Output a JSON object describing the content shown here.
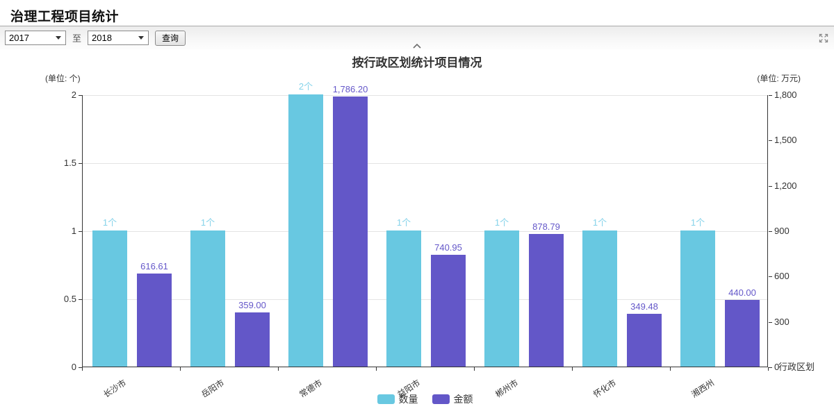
{
  "page": {
    "title": "治理工程项目统计"
  },
  "toolbar": {
    "year_from": "2017",
    "to_label": "至",
    "year_to": "2018",
    "query_button": "查询"
  },
  "chart_data": {
    "type": "bar",
    "title": "按行政区划统计项目情况",
    "x_axis_name": "行政区划",
    "categories": [
      "长沙市",
      "岳阳市",
      "常德市",
      "益阳市",
      "郴州市",
      "怀化市",
      "湘西州"
    ],
    "left_axis": {
      "unit_label": "(单位: 个)",
      "max": 2,
      "ticks": [
        "2",
        "1.5",
        "1",
        "0.5",
        "0"
      ]
    },
    "right_axis": {
      "unit_label": "(单位: 万元)",
      "max": 1800,
      "ticks": [
        "1,800",
        "1,500",
        "1,200",
        "900",
        "600",
        "300",
        "0"
      ]
    },
    "series": [
      {
        "name": "数量",
        "axis": "left",
        "color": "#68c8e1",
        "label_color": "#85d3ea",
        "values": [
          1,
          1,
          2,
          1,
          1,
          1,
          1
        ],
        "labels": [
          "1个",
          "1个",
          "2个",
          "1个",
          "1个",
          "1个",
          "1个"
        ]
      },
      {
        "name": "金额",
        "axis": "right",
        "color": "#6357c8",
        "label_color": "#6457c9",
        "values": [
          616.61,
          359.0,
          1786.2,
          740.95,
          878.79,
          349.48,
          440.0
        ],
        "labels": [
          "616.61",
          "359.00",
          "1,786.20",
          "740.95",
          "878.79",
          "349.48",
          "440.00"
        ]
      }
    ],
    "legend": [
      "数量",
      "金额"
    ],
    "grid": true,
    "legend_position": "bottom"
  }
}
